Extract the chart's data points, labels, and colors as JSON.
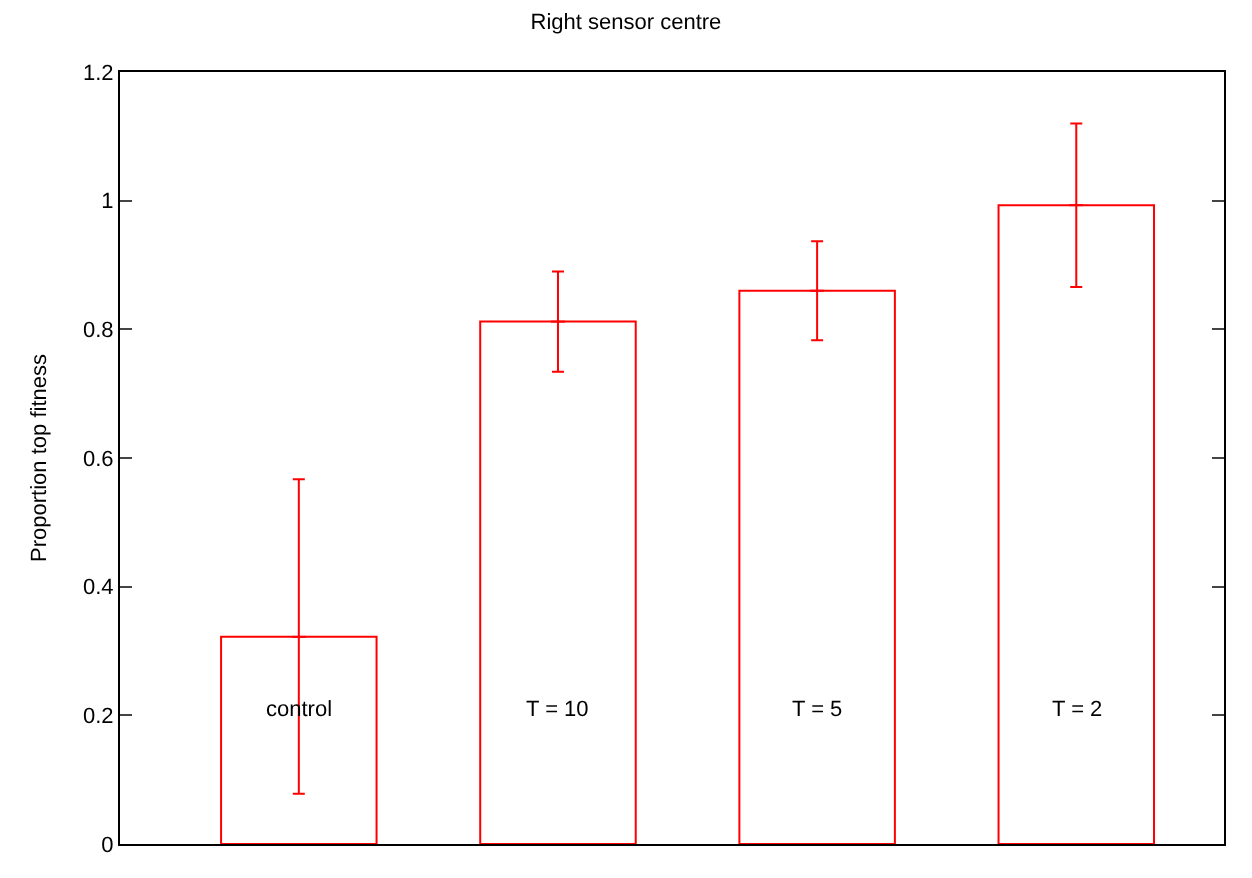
{
  "chart_data": {
    "type": "bar",
    "title": "Right sensor centre",
    "ylabel": "Proportion top fitness",
    "categories": [
      "control",
      "T = 10",
      "T = 5",
      "T = 2"
    ],
    "values": [
      0.322,
      0.812,
      0.86,
      0.993
    ],
    "errors": [
      [
        0.078,
        0.567
      ],
      [
        0.734,
        0.89
      ],
      [
        0.783,
        0.937
      ],
      [
        0.866,
        1.12
      ]
    ],
    "color": "#ff0000",
    "ylim": [
      0,
      1.2
    ],
    "yticks": [
      0,
      0.2,
      0.4,
      0.6,
      0.8,
      1,
      1.2
    ],
    "legend": false
  }
}
